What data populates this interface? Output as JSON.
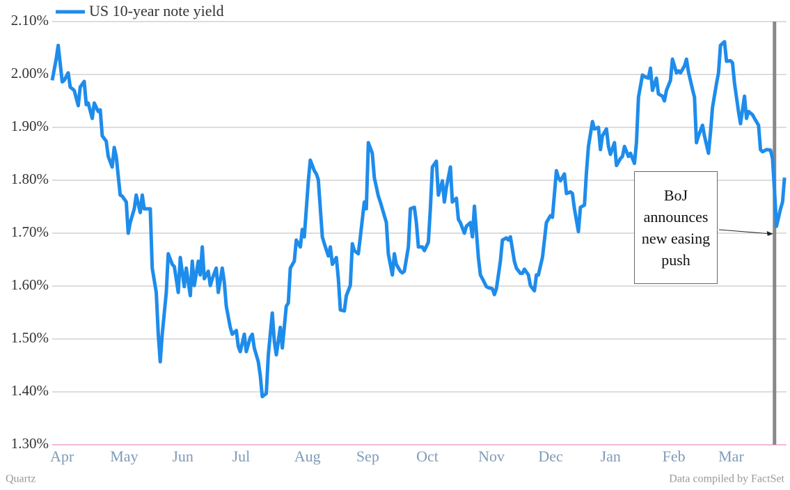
{
  "chart_data": {
    "type": "line",
    "legend": "top-left",
    "grid": true,
    "series": [
      {
        "name": "US 10-year note yield",
        "color": "#1e8ceb",
        "x": [
          0,
          2,
          3,
          5,
          6,
          8,
          9,
          11,
          13,
          14,
          16,
          17,
          18,
          20,
          21,
          23,
          24,
          25,
          27,
          28,
          30,
          31,
          32,
          34,
          35,
          37,
          38,
          39,
          41,
          42,
          44,
          45,
          46,
          48,
          49,
          50,
          52,
          53,
          54,
          55,
          57,
          58,
          60,
          61,
          62,
          63,
          64,
          66,
          67,
          69,
          70,
          71,
          73,
          74,
          75,
          76,
          78,
          79,
          80,
          82,
          83,
          85,
          86,
          87,
          89,
          90,
          92,
          93,
          94,
          96,
          97,
          99,
          100,
          101,
          103,
          104,
          105,
          107,
          108,
          110,
          111,
          112,
          114,
          115,
          117,
          118,
          119,
          121,
          122,
          124,
          125,
          126,
          128,
          129,
          131,
          132,
          133,
          135,
          136,
          138,
          139,
          140,
          142,
          143,
          144,
          146,
          147,
          149,
          150,
          151,
          153,
          154,
          156,
          157,
          158,
          160,
          161,
          163,
          164,
          165,
          167,
          168,
          170,
          171,
          172,
          174,
          175,
          176,
          178,
          179,
          181,
          182,
          183,
          185,
          186,
          188,
          189,
          190,
          192,
          193,
          195,
          196,
          197,
          199,
          200,
          202,
          203,
          204,
          206,
          207,
          209,
          210,
          211,
          213,
          214,
          215,
          217,
          218,
          220,
          221,
          222,
          224,
          225,
          227,
          228,
          229,
          231,
          232,
          234,
          235,
          236,
          238,
          239,
          241,
          242,
          243,
          245,
          246,
          247,
          249,
          250,
          252,
          253,
          254,
          256,
          257,
          259,
          260,
          261,
          263,
          264,
          266,
          267,
          268,
          270,
          271,
          273,
          274,
          275,
          277,
          278,
          279,
          281,
          282,
          284,
          285,
          286,
          288,
          289,
          291,
          292,
          293,
          295,
          296,
          298,
          299,
          300,
          302,
          303,
          305,
          306,
          307,
          309,
          310,
          312,
          313,
          314,
          316,
          317,
          318,
          320,
          321,
          322,
          323,
          325,
          326,
          328,
          329,
          330,
          332,
          333,
          334,
          336,
          337,
          339,
          340,
          341,
          343,
          344,
          346,
          347,
          348,
          350,
          351,
          353,
          354,
          355,
          357,
          359,
          360,
          361,
          362,
          364,
          365,
          366
        ],
        "values": [
          1.989,
          2.029,
          2.055,
          1.986,
          1.989,
          2.003,
          1.976,
          1.97,
          1.941,
          1.976,
          1.987,
          1.943,
          1.946,
          1.917,
          1.946,
          1.93,
          1.933,
          1.884,
          1.874,
          1.845,
          1.825,
          1.862,
          1.845,
          1.772,
          1.77,
          1.759,
          1.7,
          1.72,
          1.746,
          1.772,
          1.739,
          1.772,
          1.746,
          1.746,
          1.746,
          1.634,
          1.588,
          1.509,
          1.457,
          1.509,
          1.588,
          1.661,
          1.641,
          1.637,
          1.614,
          1.588,
          1.654,
          1.599,
          1.634,
          1.582,
          1.647,
          1.601,
          1.647,
          1.621,
          1.674,
          1.614,
          1.628,
          1.601,
          1.614,
          1.634,
          1.588,
          1.634,
          1.608,
          1.562,
          1.522,
          1.509,
          1.516,
          1.486,
          1.476,
          1.509,
          1.476,
          1.503,
          1.509,
          1.483,
          1.457,
          1.43,
          1.391,
          1.397,
          1.47,
          1.549,
          1.496,
          1.47,
          1.522,
          1.483,
          1.562,
          1.568,
          1.634,
          1.647,
          1.687,
          1.674,
          1.707,
          1.693,
          1.799,
          1.838,
          1.818,
          1.812,
          1.801,
          1.693,
          1.68,
          1.657,
          1.674,
          1.641,
          1.654,
          1.614,
          1.555,
          1.553,
          1.582,
          1.601,
          1.68,
          1.667,
          1.661,
          1.693,
          1.759,
          1.746,
          1.871,
          1.851,
          1.805,
          1.77,
          1.759,
          1.746,
          1.72,
          1.661,
          1.621,
          1.661,
          1.641,
          1.628,
          1.625,
          1.628,
          1.674,
          1.746,
          1.749,
          1.72,
          1.674,
          1.674,
          1.667,
          1.683,
          1.746,
          1.825,
          1.836,
          1.772,
          1.799,
          1.759,
          1.786,
          1.825,
          1.759,
          1.766,
          1.726,
          1.72,
          1.7,
          1.713,
          1.72,
          1.693,
          1.751,
          1.654,
          1.621,
          1.614,
          1.599,
          1.597,
          1.595,
          1.584,
          1.595,
          1.647,
          1.687,
          1.691,
          1.687,
          1.693,
          1.647,
          1.634,
          1.624,
          1.624,
          1.632,
          1.621,
          1.601,
          1.591,
          1.621,
          1.621,
          1.654,
          1.687,
          1.72,
          1.733,
          1.73,
          1.818,
          1.805,
          1.799,
          1.812,
          1.775,
          1.778,
          1.775,
          1.746,
          1.703,
          1.749,
          1.753,
          1.814,
          1.864,
          1.911,
          1.897,
          1.9,
          1.858,
          1.884,
          1.897,
          1.864,
          1.849,
          1.871,
          1.828,
          1.841,
          1.845,
          1.864,
          1.845,
          1.851,
          1.832,
          1.871,
          1.957,
          1.999,
          1.996,
          1.993,
          2.012,
          1.97,
          1.993,
          1.963,
          1.959,
          1.95,
          1.97,
          1.989,
          2.029,
          2.003,
          2.007,
          2.003,
          2.016,
          2.029,
          2.005,
          1.972,
          1.957,
          1.871,
          1.884,
          1.904,
          1.884,
          1.851,
          1.891,
          1.937,
          1.983,
          2.003,
          2.055,
          2.062,
          2.025,
          2.026,
          2.022,
          1.983,
          1.93,
          1.907,
          1.959,
          1.917,
          1.93,
          1.924,
          1.917,
          1.904,
          1.858,
          1.854,
          1.858,
          1.857,
          1.841,
          1.779,
          1.713,
          1.746,
          1.759,
          1.805
        ]
      }
    ],
    "xlim": [
      0,
      367
    ],
    "xticks": [
      {
        "value": 0,
        "label": "Apr"
      },
      {
        "value": 30,
        "label": "May"
      },
      {
        "value": 61,
        "label": "Jun"
      },
      {
        "value": 91,
        "label": "Jul"
      },
      {
        "value": 122,
        "label": "Aug"
      },
      {
        "value": 153,
        "label": "Sep"
      },
      {
        "value": 183,
        "label": "Oct"
      },
      {
        "value": 214,
        "label": "Nov"
      },
      {
        "value": 244,
        "label": "Dec"
      },
      {
        "value": 275,
        "label": "Jan"
      },
      {
        "value": 306,
        "label": "Feb"
      },
      {
        "value": 334,
        "label": "Mar"
      }
    ],
    "ylim": [
      1.3,
      2.1
    ],
    "yticks": [
      {
        "value": 1.3,
        "label": "1.30%"
      },
      {
        "value": 1.4,
        "label": "1.40%"
      },
      {
        "value": 1.5,
        "label": "1.50%"
      },
      {
        "value": 1.6,
        "label": "1.60%"
      },
      {
        "value": 1.7,
        "label": "1.70%"
      },
      {
        "value": 1.8,
        "label": "1.80%"
      },
      {
        "value": 1.9,
        "label": "1.90%"
      },
      {
        "value": 2.0,
        "label": "2.00%"
      },
      {
        "value": 2.1,
        "label": "2.10%"
      }
    ],
    "annotations": [
      {
        "text": "BoJ announces new easing push",
        "x": 361
      }
    ],
    "source_left": "Quartz",
    "source_right": "Data compiled by FactSet"
  }
}
